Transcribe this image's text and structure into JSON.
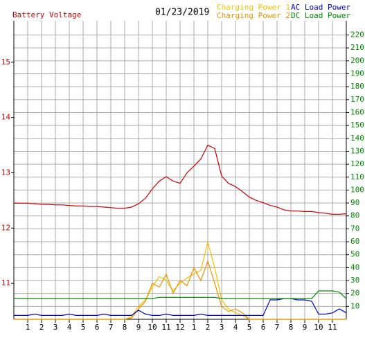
{
  "chart_data": {
    "type": "line",
    "title": "01/23/2019",
    "x": [
      0,
      0.5,
      1,
      1.5,
      2,
      2.5,
      3,
      3.5,
      4,
      4.5,
      5,
      5.5,
      6,
      6.5,
      7,
      7.5,
      8,
      8.5,
      9,
      9.5,
      10,
      10.5,
      11,
      11.5,
      12,
      12.5,
      13,
      13.5,
      14,
      14.5,
      15,
      15.5,
      16,
      16.5,
      17,
      17.5,
      18,
      18.5,
      19,
      19.5,
      20,
      20.5,
      21,
      21.5,
      22,
      22.5,
      23,
      23.5,
      24
    ],
    "xlim": [
      0,
      24
    ],
    "xticks": [
      1,
      2,
      3,
      4,
      5,
      6,
      7,
      8,
      9,
      10,
      11,
      12,
      {
        "value": 13,
        "label": "1"
      },
      {
        "value": 14,
        "label": "2"
      },
      {
        "value": 15,
        "label": "3"
      },
      {
        "value": 16,
        "label": "4"
      },
      {
        "value": 17,
        "label": "5"
      },
      {
        "value": 18,
        "label": "6"
      },
      {
        "value": 19,
        "label": "7"
      },
      {
        "value": 20,
        "label": "8"
      },
      {
        "value": 21,
        "label": "9"
      },
      {
        "value": 22,
        "label": "10"
      },
      {
        "value": 23,
        "label": "11"
      }
    ],
    "ylim": [
      10.35,
      15.75
    ],
    "yticks": [
      11,
      12,
      13,
      14,
      15
    ],
    "y2lim": [
      0,
      231
    ],
    "y2ticks": [
      10,
      20,
      30,
      40,
      50,
      60,
      70,
      80,
      90,
      100,
      110,
      120,
      130,
      140,
      150,
      160,
      170,
      180,
      190,
      200,
      210,
      220
    ],
    "grid": true,
    "series": [
      {
        "name": "Battery Voltage",
        "color": "#cc0000",
        "axis": "y",
        "values": [
          12.45,
          12.45,
          12.45,
          12.44,
          12.43,
          12.43,
          12.42,
          12.42,
          12.41,
          12.4,
          12.4,
          12.39,
          12.39,
          12.38,
          12.37,
          12.36,
          12.36,
          12.38,
          12.44,
          12.54,
          12.71,
          12.85,
          12.93,
          12.85,
          12.81,
          13.0,
          13.12,
          13.25,
          13.5,
          13.44,
          12.94,
          12.81,
          12.75,
          12.66,
          12.56,
          12.5,
          12.46,
          12.41,
          12.38,
          12.33,
          12.31,
          12.31,
          12.3,
          12.3,
          12.28,
          12.27,
          12.25,
          12.25,
          12.26
        ]
      },
      {
        "name": "Charging Power 1",
        "color": "#f5c000",
        "axis": "y2",
        "values": [
          0,
          0,
          0,
          0,
          0,
          0,
          0,
          0,
          0,
          0,
          0,
          0,
          0,
          0,
          0,
          0,
          0,
          2,
          10,
          15,
          25,
          33,
          30,
          22,
          28,
          32,
          35,
          38,
          60,
          40,
          15,
          8,
          5,
          3,
          0,
          0,
          0,
          0,
          0,
          0,
          0,
          0,
          0,
          0,
          0,
          0,
          0,
          0,
          0
        ]
      },
      {
        "name": "Charging Power 2",
        "color": "#e89400",
        "axis": "y2",
        "values": [
          0,
          0,
          0,
          0,
          0,
          0,
          0,
          0,
          0,
          0,
          0,
          0,
          0,
          0,
          0,
          0,
          0,
          1,
          8,
          14,
          28,
          25,
          35,
          20,
          30,
          26,
          40,
          30,
          45,
          28,
          10,
          6,
          8,
          5,
          0,
          0,
          0,
          0,
          0,
          0,
          0,
          0,
          0,
          0,
          0,
          0,
          0,
          0,
          0
        ]
      },
      {
        "name": "AC Load Power",
        "color": "#0000cc",
        "axis": "y2",
        "values": [
          3,
          3,
          3,
          4,
          3,
          3,
          3,
          3,
          4,
          3,
          3,
          3,
          3,
          4,
          3,
          3,
          3,
          3,
          7,
          4,
          3,
          3,
          4,
          3,
          3,
          3,
          3,
          4,
          3,
          3,
          3,
          3,
          3,
          3,
          3,
          3,
          3,
          15,
          15,
          16,
          16,
          15,
          15,
          14,
          4,
          4,
          5,
          8,
          5
        ]
      },
      {
        "name": "DC Load Power",
        "color": "#008800",
        "axis": "y2",
        "values": [
          16,
          16,
          16,
          16,
          16,
          16,
          16,
          16,
          16,
          16,
          16,
          16,
          16,
          16,
          16,
          16,
          16,
          16,
          16,
          16,
          16,
          17,
          17,
          17,
          17,
          17,
          17,
          17,
          17,
          17,
          16,
          16,
          16,
          16,
          16,
          16,
          16,
          16,
          16,
          16,
          16,
          16,
          16,
          16,
          22,
          22,
          22,
          21,
          16
        ]
      }
    ]
  }
}
